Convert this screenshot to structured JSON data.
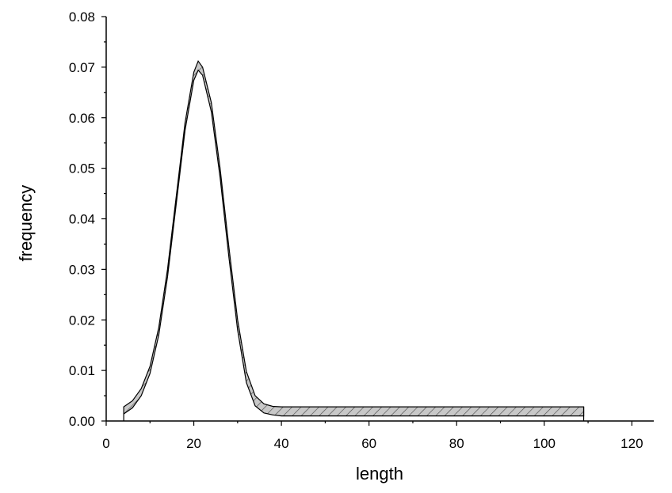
{
  "chart_data": {
    "type": "area",
    "title": "",
    "xlabel": "length",
    "ylabel": "frequency",
    "xlim": [
      0,
      125
    ],
    "ylim": [
      0,
      0.08
    ],
    "x_ticks": [
      "0",
      "20",
      "40",
      "60",
      "80",
      "100",
      "120"
    ],
    "y_ticks": [
      "0.00",
      "0.01",
      "0.02",
      "0.03",
      "0.04",
      "0.05",
      "0.06",
      "0.07",
      "0.08"
    ],
    "grid": false,
    "legend": "none",
    "fill_pattern": "diagonal-hatch",
    "fill_color": "#c8c8c8",
    "series": [
      {
        "upper": {
          "x": [
            4,
            6,
            8,
            10,
            12,
            14,
            16,
            18,
            20,
            21,
            22,
            24,
            26,
            28,
            30,
            32,
            34,
            36,
            38,
            40,
            45,
            60,
            80,
            100,
            109
          ],
          "y": [
            0.0028,
            0.004,
            0.0064,
            0.0108,
            0.0185,
            0.03,
            0.0445,
            0.059,
            0.069,
            0.0712,
            0.07,
            0.063,
            0.05,
            0.0345,
            0.02,
            0.0098,
            0.005,
            0.0034,
            0.0029,
            0.0028,
            0.0028,
            0.0028,
            0.0028,
            0.0028,
            0.0028
          ]
        },
        "lower": {
          "x": [
            4,
            6,
            8,
            10,
            12,
            14,
            16,
            18,
            20,
            21,
            22,
            24,
            26,
            28,
            30,
            32,
            34,
            36,
            38,
            40,
            45,
            60,
            80,
            100,
            109
          ],
          "y": [
            0.0014,
            0.0026,
            0.005,
            0.0094,
            0.017,
            0.0285,
            0.043,
            0.0575,
            0.0674,
            0.0694,
            0.0684,
            0.0612,
            0.0482,
            0.0325,
            0.018,
            0.0076,
            0.003,
            0.0016,
            0.0012,
            0.001,
            0.001,
            0.001,
            0.001,
            0.001,
            0.001
          ]
        }
      }
    ]
  }
}
